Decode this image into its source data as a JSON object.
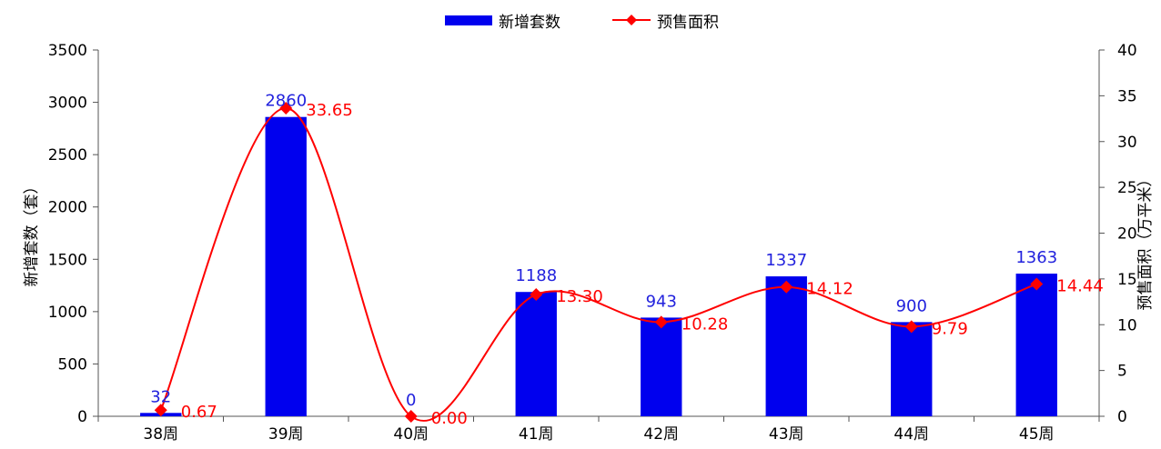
{
  "chart_data": {
    "type": "bar",
    "title": "",
    "categories": [
      "38周",
      "39周",
      "40周",
      "41周",
      "42周",
      "43周",
      "44周",
      "45周"
    ],
    "series": [
      {
        "name": "新增套数",
        "type": "bar",
        "axis": "left",
        "values": [
          32,
          2860,
          0,
          1188,
          943,
          1337,
          900,
          1363
        ],
        "labels": [
          "32",
          "2860",
          "0",
          "1188",
          "943",
          "1337",
          "900",
          "1363"
        ]
      },
      {
        "name": "预售面积",
        "type": "line",
        "axis": "right",
        "values": [
          0.67,
          33.65,
          0.0,
          13.3,
          10.28,
          14.12,
          9.79,
          14.44
        ],
        "labels": [
          "0.67",
          "33.65",
          "0.00",
          "13.30",
          "10.28",
          "14.12",
          "9.79",
          "14.44"
        ]
      }
    ],
    "ylabel": "新增套数（套）",
    "y2label": "预售面积（万平米）",
    "ylim": [
      0,
      3500
    ],
    "y2lim": [
      0,
      40
    ],
    "yticks": [
      "0",
      "500",
      "1000",
      "1500",
      "2000",
      "2500",
      "3000",
      "3500"
    ],
    "y2ticks": [
      "0",
      "5",
      "10",
      "15",
      "20",
      "25",
      "30",
      "35",
      "40"
    ],
    "legend_position": "top-center",
    "grid": false,
    "colors": {
      "bar": "#0000ee",
      "bar_label": "#2222dd",
      "line": "#ff0000",
      "line_label": "#ff0000"
    }
  }
}
